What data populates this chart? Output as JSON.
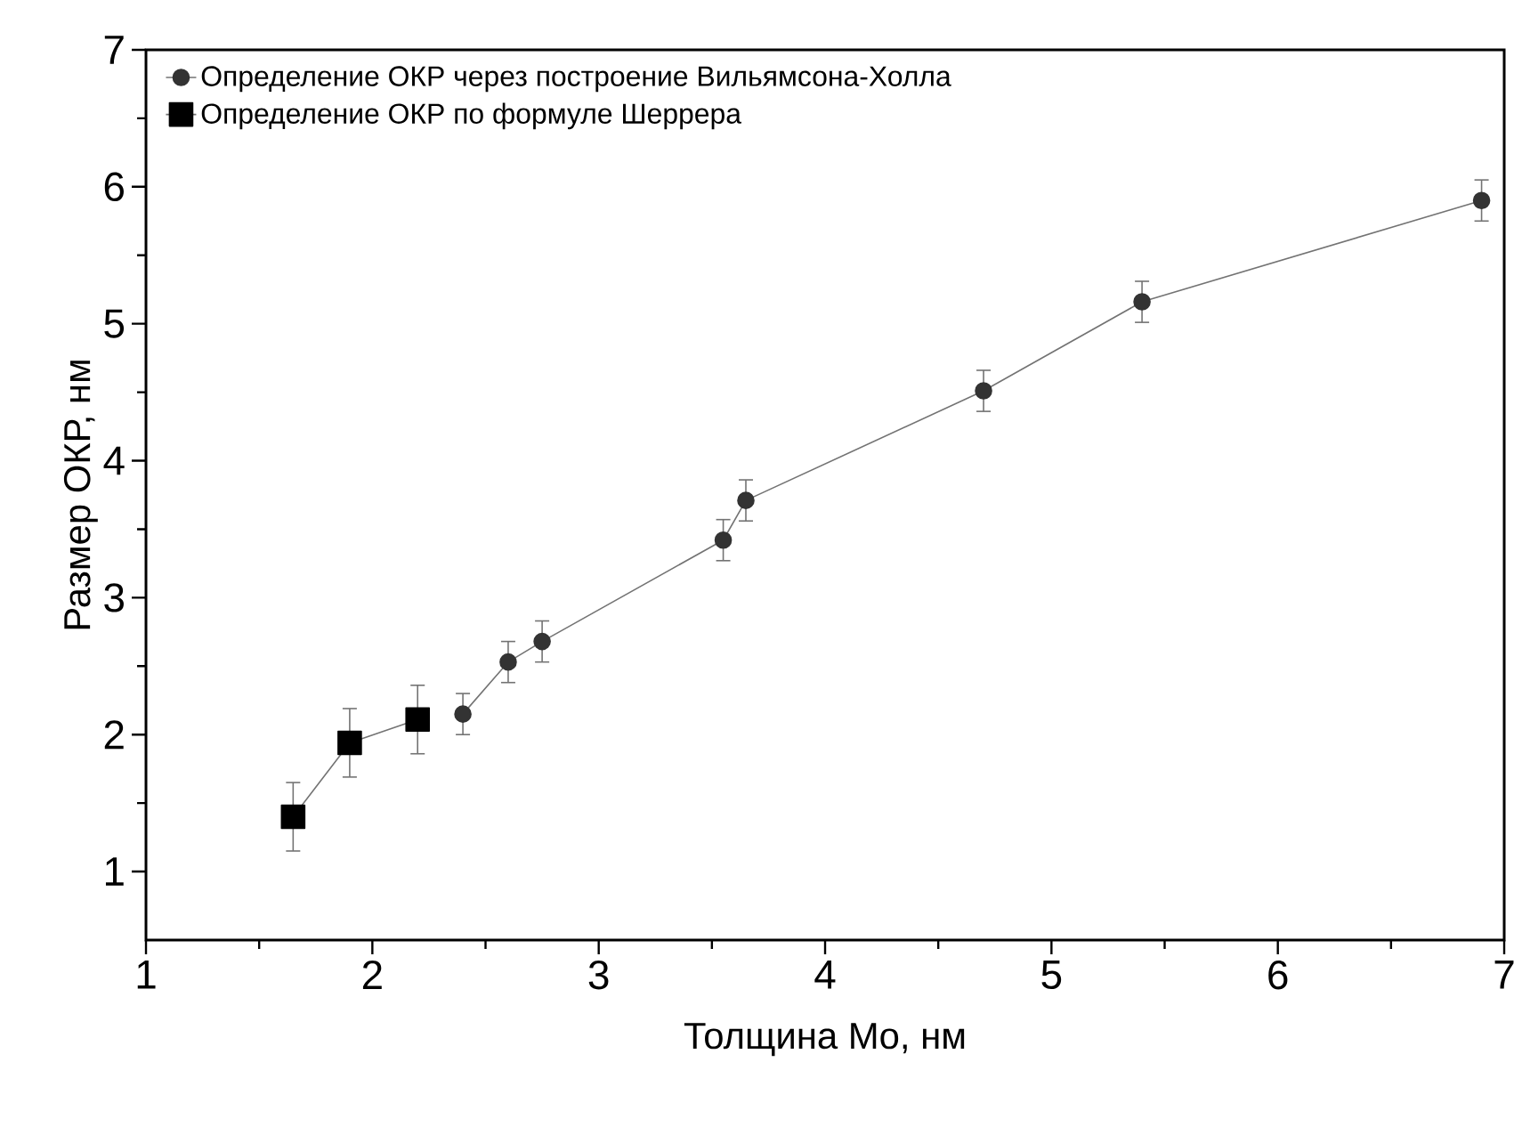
{
  "chart_data": {
    "type": "line",
    "xlabel": "Толщина Mo, нм",
    "ylabel": "Размер ОКР, нм",
    "xlim": [
      1,
      7
    ],
    "ylim": [
      0.5,
      7
    ],
    "xticks": [
      1,
      2,
      3,
      4,
      5,
      6,
      7
    ],
    "yticks": [
      1,
      2,
      3,
      4,
      5,
      6,
      7
    ],
    "legend": "top left",
    "grid": false,
    "series": [
      {
        "name": "Определение ОКР через построение Вильямсона-Холла",
        "color": "#333333",
        "marker": "circle",
        "x": [
          2.4,
          2.6,
          2.75,
          3.55,
          3.65,
          4.7,
          5.4,
          6.9
        ],
        "values": [
          2.15,
          2.53,
          2.68,
          3.42,
          3.71,
          4.51,
          5.16,
          5.9
        ],
        "errors": [
          0.15,
          0.15,
          0.15,
          0.15,
          0.15,
          0.15,
          0.15,
          0.15
        ]
      },
      {
        "name": "Определение ОКР по формуле Шеррера",
        "color": "#000000",
        "marker": "square",
        "x": [
          1.65,
          1.9,
          2.2
        ],
        "values": [
          1.4,
          1.94,
          2.11
        ],
        "errors": [
          0.25,
          0.25,
          0.25
        ]
      }
    ]
  }
}
